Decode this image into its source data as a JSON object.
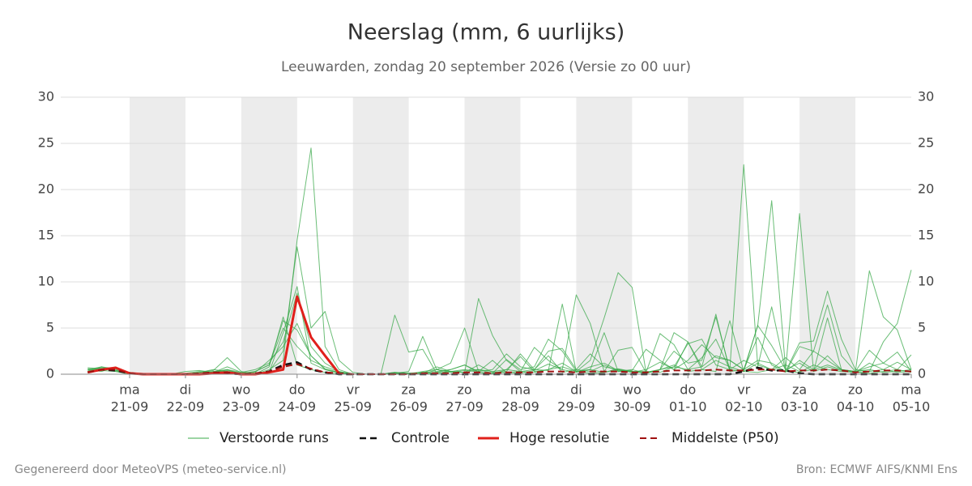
{
  "chart_data": {
    "type": "line",
    "title": "Neerslag (mm, 6 uurlijks)",
    "subtitle": "Leeuwarden, zondag 20 september 2026 (Versie zo 00 uur)",
    "footer_left": "Gegenereerd door MeteoVPS (meteo-service.nl)",
    "footer_right": "Bron: ECMWF AIFS/KNMI Ens",
    "categories": [
      null,
      null,
      null,
      "21-09",
      null,
      null,
      null,
      "22-09",
      null,
      null,
      null,
      "23-09",
      null,
      null,
      null,
      "24-09",
      null,
      null,
      null,
      "25-09",
      null,
      null,
      null,
      "26-09",
      null,
      null,
      null,
      "27-09",
      null,
      null,
      null,
      "28-09",
      null,
      null,
      null,
      "29-09",
      null,
      null,
      null,
      "30-09",
      null,
      null,
      null,
      "01-10",
      null,
      null,
      null,
      "02-10",
      null,
      null,
      null,
      "03-10",
      null,
      null,
      null,
      "04-10",
      null,
      null,
      null,
      "05-10"
    ],
    "weekdays": [
      null,
      null,
      null,
      "ma",
      null,
      null,
      null,
      "di",
      null,
      null,
      null,
      "wo",
      null,
      null,
      null,
      "do",
      null,
      null,
      null,
      "vr",
      null,
      null,
      null,
      "za",
      null,
      null,
      null,
      "zo",
      null,
      null,
      null,
      "ma",
      null,
      null,
      null,
      "di",
      null,
      null,
      null,
      "wo",
      null,
      null,
      null,
      "do",
      null,
      null,
      null,
      "vr",
      null,
      null,
      null,
      "za",
      null,
      null,
      null,
      "zo",
      null,
      null,
      null,
      "ma"
    ],
    "ylim": [
      0,
      30
    ],
    "yticks": [
      0,
      5,
      10,
      15,
      20,
      25,
      30
    ],
    "grid": true,
    "legend": "bottom",
    "series": [
      {
        "name": "Verstoorde runs",
        "color": "#3aa84a",
        "width": 1,
        "dashed": false,
        "members": [
          [
            0.5,
            0.8,
            0.6,
            0.1,
            0,
            0,
            0,
            0,
            0,
            0.3,
            0.5,
            0.2,
            0,
            0.5,
            1.5,
            14.5,
            24.5,
            3,
            0.5,
            0,
            0,
            0,
            0.2,
            0.1,
            0,
            0.2,
            0.5,
            1,
            0.2,
            0,
            0.5,
            0.3,
            0.2,
            0.5,
            0.8,
            0.3,
            0.1,
            0.2,
            0.5,
            0.3,
            0.1,
            0.5,
            1,
            0.3,
            0.5,
            1.5,
            0.8,
            0.3,
            0.2,
            0.5,
            1,
            0.3,
            0.5,
            1,
            0.5,
            0.2,
            0.3,
            0.5,
            0.2,
            0.3
          ],
          [
            0.3,
            0.6,
            0.4,
            0.2,
            0,
            0,
            0,
            0,
            0.2,
            0.4,
            1.8,
            0.3,
            0,
            0.8,
            6.2,
            1,
            0.5,
            0.2,
            0,
            0,
            0,
            0,
            6.4,
            2.4,
            2.7,
            0.1,
            0.3,
            0.2,
            0.5,
            0.1,
            0.2,
            0.1,
            0.4,
            1.1,
            0.5,
            0.2,
            0.8,
            1.2,
            0.4,
            0.3,
            0.2,
            0.5,
            0.8,
            3.3,
            3.8,
            1,
            0.5,
            22.7,
            1,
            0.5,
            0.3,
            0.2,
            1,
            0.5,
            0.3,
            0.2,
            0.1,
            0.3,
            0.5,
            0.2
          ],
          [
            0.6,
            0.5,
            0.7,
            0.1,
            0,
            0,
            0,
            0.3,
            0.4,
            0.2,
            0.4,
            0.1,
            0,
            0.3,
            2.5,
            13.8,
            5,
            6.8,
            1.5,
            0.2,
            0,
            0,
            0.1,
            0.3,
            4.1,
            0.5,
            0.3,
            0.2,
            8.2,
            4.2,
            1.5,
            0.3,
            0.5,
            0.4,
            7.6,
            0.3,
            1.5,
            6.1,
            11,
            9.4,
            0.2,
            4.4,
            3.2,
            0.5,
            0.8,
            6.5,
            0.3,
            0.5,
            5.2,
            18.8,
            0.5,
            1.2,
            0.3,
            0.8,
            0.4,
            0.3,
            0.5,
            0.2,
            0.3,
            0.5
          ],
          [
            0.2,
            0.4,
            0.3,
            0,
            0,
            0,
            0,
            0,
            0.1,
            0.2,
            0.3,
            0,
            0,
            0.2,
            4.5,
            9.5,
            1.2,
            0.5,
            0.2,
            0,
            0,
            0,
            0.2,
            0.1,
            0,
            0.5,
            1.2,
            5,
            0.3,
            1.5,
            0.2,
            0.3,
            2.9,
            1.5,
            0.5,
            8.6,
            5.5,
            0.3,
            2.6,
            2.9,
            0.2,
            0.5,
            4.5,
            3.5,
            0.5,
            0.3,
            5.8,
            0.3,
            5.3,
            3.1,
            0.5,
            17.4,
            0.3,
            6.1,
            0.5,
            0.3,
            11.2,
            6.2,
            4.8,
            0.5
          ],
          [
            0.4,
            0.7,
            0.5,
            0.1,
            0,
            0,
            0,
            0,
            0.1,
            0.3,
            0.2,
            0,
            0.3,
            1,
            5,
            3,
            1.5,
            0.8,
            0.3,
            0,
            0,
            0,
            0.1,
            0,
            0.1,
            0.8,
            0.3,
            0.5,
            0.2,
            0.1,
            1.6,
            0.5,
            0.8,
            3.8,
            2.5,
            0.3,
            0.5,
            4.5,
            0.3,
            0.5,
            0.1,
            0.5,
            2.5,
            1.2,
            1.5,
            6.2,
            0.5,
            1.5,
            0.8,
            7.3,
            0.3,
            3.4,
            3.6,
            9,
            3.8,
            0.5,
            0.3,
            3.5,
            5.5,
            11.3
          ],
          [
            0.3,
            0.8,
            0.3,
            0.2,
            0,
            0,
            0,
            0.1,
            0.3,
            0.2,
            0.5,
            0,
            0.2,
            1.5,
            3,
            5.5,
            2,
            0.5,
            0.1,
            0,
            0,
            0,
            0,
            0.1,
            0.2,
            0.3,
            0.5,
            1,
            0.3,
            0.5,
            2.2,
            0.8,
            0.5,
            2.5,
            2.8,
            0.5,
            2.2,
            0.8,
            0.5,
            0.2,
            0.5,
            1.3,
            0.5,
            3.5,
            0.8,
            2,
            1.5,
            0.5,
            4,
            1,
            0.2,
            3,
            2.5,
            7.5,
            2,
            0.3,
            2.6,
            1.2,
            2.4,
            0.3
          ],
          [
            0.7,
            0.6,
            0.4,
            0.1,
            0,
            0,
            0,
            0,
            0,
            0.2,
            0.8,
            0.2,
            0.5,
            1.2,
            3.5,
            8.8,
            3,
            1.2,
            0.3,
            0,
            0,
            0,
            0.1,
            0,
            0.3,
            0.5,
            0.2,
            0.4,
            0.5,
            0.3,
            0.5,
            1.9,
            0.3,
            0.5,
            1.2,
            0.3,
            0.5,
            0.2,
            0.6,
            0.3,
            0.3,
            0.2,
            0.8,
            0.5,
            1.8,
            3.8,
            0.5,
            0.3,
            1.2,
            0.5,
            1.8,
            0.5,
            2.5,
            1.5,
            0.5,
            0.3,
            0.8,
            1.2,
            0.5,
            2.1
          ],
          [
            0.5,
            0.3,
            0.8,
            0.1,
            0,
            0,
            0,
            0,
            0.2,
            0.5,
            0.3,
            0.1,
            0.3,
            1,
            5.8,
            4.8,
            2,
            0.6,
            0.2,
            0,
            0,
            0,
            0,
            0.1,
            0.2,
            0.1,
            0.3,
            0.2,
            1,
            0.2,
            0.3,
            2.2,
            0.5,
            2,
            0.2,
            0.5,
            0.3,
            1,
            0.3,
            0.4,
            2.7,
            1.5,
            0.5,
            1.5,
            3.2,
            1.8,
            1.5,
            0.5,
            1.5,
            1.2,
            0.3,
            1.5,
            0.5,
            2,
            0.5,
            0.2,
            1.2,
            0.5,
            1.3,
            0.5
          ]
        ]
      },
      {
        "name": "Controle",
        "color": "#111111",
        "width": 2.5,
        "dashed": true,
        "values": [
          0.2,
          0.5,
          0.4,
          0.1,
          0,
          0,
          0,
          0,
          0,
          0.1,
          0.1,
          0,
          0,
          0.3,
          1,
          1.3,
          0.5,
          0.2,
          0,
          0,
          0,
          0,
          0,
          0,
          0,
          0,
          0,
          0,
          0,
          0,
          0,
          0,
          0,
          0,
          0,
          0,
          0,
          0,
          0,
          0,
          0,
          0,
          0,
          0,
          0,
          0,
          0,
          0.3,
          0.7,
          0.4,
          0.4,
          0.1,
          0,
          0,
          0,
          0,
          0,
          0,
          0,
          0
        ]
      },
      {
        "name": "Hoge resolutie",
        "color": "#e0201b",
        "width": 3,
        "dashed": false,
        "values": [
          0.2,
          0.5,
          0.7,
          0.1,
          0,
          0,
          0,
          0,
          0,
          0.1,
          0.2,
          0,
          0,
          0.2,
          0.5,
          8.4,
          4,
          2,
          0.1,
          null,
          null,
          null,
          null,
          null,
          null,
          null,
          null,
          null,
          null,
          null,
          null,
          null,
          null,
          null,
          null,
          null,
          null,
          null,
          null,
          null,
          null,
          null,
          null,
          null,
          null,
          null,
          null,
          null,
          null,
          null,
          null,
          null,
          null,
          null,
          null,
          null,
          null,
          null,
          null,
          null
        ]
      },
      {
        "name": "Middelste (P50)",
        "color": "#a01010",
        "width": 2,
        "dashed": true,
        "values": [
          0.2,
          0.5,
          0.5,
          0.1,
          0,
          0,
          0,
          0,
          0.1,
          0.2,
          0.2,
          0,
          0.1,
          0.3,
          0.8,
          1.1,
          0.6,
          0.2,
          0.1,
          0,
          0,
          0,
          0,
          0,
          0.1,
          0.1,
          0.1,
          0.2,
          0.2,
          0.1,
          0.2,
          0.2,
          0.2,
          0.3,
          0.3,
          0.2,
          0.3,
          0.3,
          0.3,
          0.2,
          0.2,
          0.3,
          0.4,
          0.4,
          0.4,
          0.5,
          0.4,
          0.4,
          0.5,
          0.5,
          0.3,
          0.4,
          0.4,
          0.5,
          0.4,
          0.2,
          0.3,
          0.4,
          0.4,
          0.3
        ]
      }
    ]
  }
}
